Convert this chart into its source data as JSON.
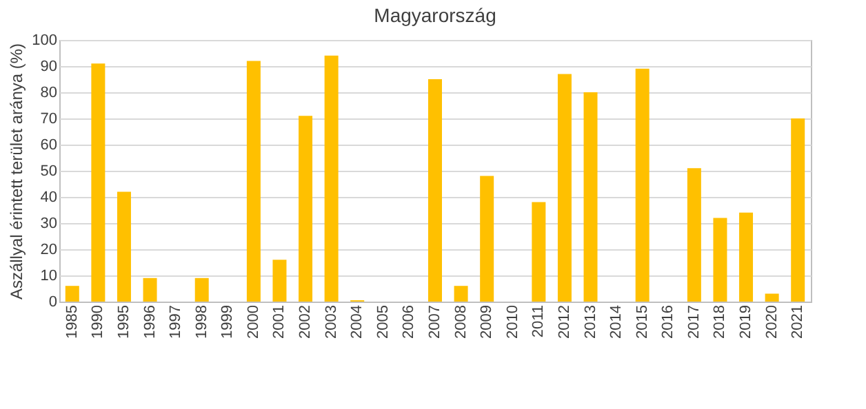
{
  "chart_data": {
    "type": "bar",
    "title": "Magyarország",
    "ylabel": "Aszállyal érintett terület aránya (%)",
    "categories": [
      "1985",
      "1990",
      "1995",
      "1996",
      "1997",
      "1998",
      "1999",
      "2000",
      "2001",
      "2002",
      "2003",
      "2004",
      "2005",
      "2006",
      "2007",
      "2008",
      "2009",
      "2010",
      "2011",
      "2012",
      "2013",
      "2014",
      "2015",
      "2016",
      "2017",
      "2018",
      "2019",
      "2020",
      "2021"
    ],
    "values": [
      6,
      91,
      42,
      9,
      0,
      9,
      0,
      92,
      16,
      71,
      94,
      0.5,
      0,
      0,
      85,
      6,
      48,
      0,
      38,
      87,
      80,
      0,
      89,
      0,
      51,
      32,
      34,
      3,
      70
    ],
    "color": "#ffc000",
    "ylim": [
      0,
      100
    ],
    "yticks": [
      0,
      10,
      20,
      30,
      40,
      50,
      60,
      70,
      80,
      90,
      100
    ],
    "grid": "y"
  }
}
